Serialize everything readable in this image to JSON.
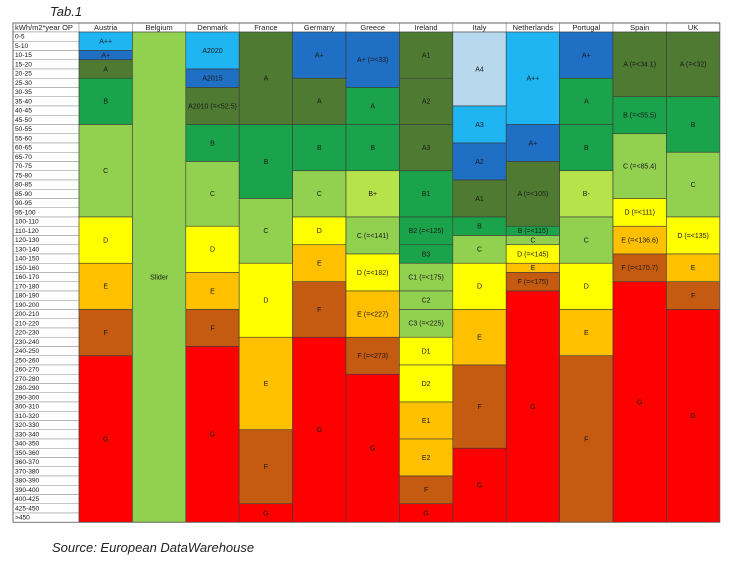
{
  "caption": "Tab.1",
  "source": "Source: European DataWarehouse",
  "chart_data": {
    "type": "table",
    "corner_header": "kWh/m2*year OP",
    "row_labels": [
      "0-5",
      "5-10",
      "10-15",
      "15-20",
      "20-25",
      "25-30",
      "30-35",
      "35-40",
      "40-45",
      "45-50",
      "50-55",
      "55-60",
      "60-65",
      "65-70",
      "70-75",
      "75-80",
      "80-85",
      "85-90",
      "90-95",
      "95-100",
      "100-110",
      "110-120",
      "120-130",
      "130-140",
      "140-150",
      "150-160",
      "160-170",
      "170-180",
      "180-190",
      "190-200",
      "200-210",
      "210-220",
      "220-230",
      "230-240",
      "240-250",
      "250-260",
      "260-270",
      "270-280",
      "280-290",
      "290-300",
      "300-310",
      "310-320",
      "320-330",
      "330-340",
      "340-350",
      "350-360",
      "360-370",
      "370-380",
      "380-390",
      "390-400",
      "400-425",
      "425-450",
      ">450"
    ],
    "countries": [
      {
        "name": "Austria",
        "segments": [
          {
            "label": "A++",
            "start": 0,
            "end": 2,
            "color": "#1fb5f2"
          },
          {
            "label": "A+",
            "start": 2,
            "end": 3,
            "color": "#1f6fc4"
          },
          {
            "label": "A",
            "start": 3,
            "end": 5,
            "color": "#4f7a32"
          },
          {
            "label": "B",
            "start": 5,
            "end": 10,
            "color": "#1aa34a"
          },
          {
            "label": "C",
            "start": 10,
            "end": 20,
            "color": "#92d050"
          },
          {
            "label": "D",
            "start": 20,
            "end": 25,
            "color": "#ffff00"
          },
          {
            "label": "E",
            "start": 25,
            "end": 30,
            "color": "#ffc000"
          },
          {
            "label": "F",
            "start": 30,
            "end": 35,
            "color": "#c55a11"
          },
          {
            "label": "G",
            "start": 35,
            "end": 53,
            "color": "#ff0000"
          }
        ]
      },
      {
        "name": "Belgium",
        "segments": [
          {
            "label": "Slider",
            "start": 0,
            "end": 53,
            "color": "#92d050"
          }
        ]
      },
      {
        "name": "Denmark",
        "segments": [
          {
            "label": "A2020",
            "start": 0,
            "end": 4,
            "color": "#1fb5f2"
          },
          {
            "label": "A2015",
            "start": 4,
            "end": 6,
            "color": "#1f6fc4"
          },
          {
            "label": "A2010 (=<52.5)",
            "start": 6,
            "end": 10,
            "color": "#4f7a32"
          },
          {
            "label": "B",
            "start": 10,
            "end": 14,
            "color": "#1aa34a"
          },
          {
            "label": "C",
            "start": 14,
            "end": 21,
            "color": "#92d050"
          },
          {
            "label": "D",
            "start": 21,
            "end": 26,
            "color": "#ffff00"
          },
          {
            "label": "E",
            "start": 26,
            "end": 30,
            "color": "#ffc000"
          },
          {
            "label": "F",
            "start": 30,
            "end": 34,
            "color": "#c55a11"
          },
          {
            "label": "G",
            "start": 34,
            "end": 53,
            "color": "#ff0000"
          }
        ]
      },
      {
        "name": "France",
        "segments": [
          {
            "label": "A",
            "start": 0,
            "end": 10,
            "color": "#4f7a32"
          },
          {
            "label": "B",
            "start": 10,
            "end": 18,
            "color": "#1aa34a"
          },
          {
            "label": "C",
            "start": 18,
            "end": 25,
            "color": "#92d050"
          },
          {
            "label": "D",
            "start": 25,
            "end": 33,
            "color": "#ffff00"
          },
          {
            "label": "E",
            "start": 33,
            "end": 43,
            "color": "#ffc000"
          },
          {
            "label": "F",
            "start": 43,
            "end": 51,
            "color": "#c55a11"
          },
          {
            "label": "G",
            "start": 51,
            "end": 53,
            "color": "#ff0000"
          }
        ]
      },
      {
        "name": "Germany",
        "segments": [
          {
            "label": "A+",
            "start": 0,
            "end": 5,
            "color": "#1f6fc4"
          },
          {
            "label": "A",
            "start": 5,
            "end": 10,
            "color": "#4f7a32"
          },
          {
            "label": "B",
            "start": 10,
            "end": 15,
            "color": "#1aa34a"
          },
          {
            "label": "C",
            "start": 15,
            "end": 20,
            "color": "#92d050"
          },
          {
            "label": "D",
            "start": 20,
            "end": 23,
            "color": "#ffff00"
          },
          {
            "label": "E",
            "start": 23,
            "end": 27,
            "color": "#ffc000"
          },
          {
            "label": "F",
            "start": 27,
            "end": 33,
            "color": "#c55a11"
          },
          {
            "label": "G",
            "start": 33,
            "end": 53,
            "color": "#ff0000"
          }
        ]
      },
      {
        "name": "Greece",
        "segments": [
          {
            "label": "A+ (=<33)",
            "start": 0,
            "end": 6,
            "color": "#1f6fc4"
          },
          {
            "label": "A",
            "start": 6,
            "end": 10,
            "color": "#1aa34a"
          },
          {
            "label": "B",
            "start": 10,
            "end": 15,
            "color": "#1aa34a"
          },
          {
            "label": "B+",
            "start": 15,
            "end": 20,
            "color": "#b7e34a"
          },
          {
            "label": "C (=<141)",
            "start": 20,
            "end": 24,
            "color": "#92d050"
          },
          {
            "label": "D (=<182)",
            "start": 24,
            "end": 28,
            "color": "#ffff00"
          },
          {
            "label": "E (=<227)",
            "start": 28,
            "end": 33,
            "color": "#ffc000"
          },
          {
            "label": "F (=<273)",
            "start": 33,
            "end": 37,
            "color": "#c55a11"
          },
          {
            "label": "G",
            "start": 37,
            "end": 53,
            "color": "#ff0000"
          }
        ]
      },
      {
        "name": "Ireland",
        "segments": [
          {
            "label": "A1",
            "start": 0,
            "end": 5,
            "color": "#4f7a32"
          },
          {
            "label": "A2",
            "start": 5,
            "end": 10,
            "color": "#4f7a32"
          },
          {
            "label": "A3",
            "start": 10,
            "end": 15,
            "color": "#4f7a32"
          },
          {
            "label": "B1",
            "start": 15,
            "end": 20,
            "color": "#1aa34a"
          },
          {
            "label": "B2 (=<125)",
            "start": 20,
            "end": 23,
            "color": "#1aa34a"
          },
          {
            "label": "B3",
            "start": 23,
            "end": 25,
            "color": "#1aa34a"
          },
          {
            "label": "C1 (=<175)",
            "start": 25,
            "end": 28,
            "color": "#92d050"
          },
          {
            "label": "C2",
            "start": 28,
            "end": 30,
            "color": "#92d050"
          },
          {
            "label": "C3 (=<225)",
            "start": 30,
            "end": 33,
            "color": "#92d050"
          },
          {
            "label": "D1",
            "start": 33,
            "end": 36,
            "color": "#ffff00"
          },
          {
            "label": "D2",
            "start": 36,
            "end": 40,
            "color": "#ffff00"
          },
          {
            "label": "E1",
            "start": 40,
            "end": 44,
            "color": "#ffc000"
          },
          {
            "label": "E2",
            "start": 44,
            "end": 48,
            "color": "#ffc000"
          },
          {
            "label": "F",
            "start": 48,
            "end": 51,
            "color": "#c55a11"
          },
          {
            "label": "G",
            "start": 51,
            "end": 53,
            "color": "#ff0000"
          }
        ]
      },
      {
        "name": "Italy",
        "segments": [
          {
            "label": "A4",
            "start": 0,
            "end": 8,
            "color": "#b8d8ee"
          },
          {
            "label": "A3",
            "start": 8,
            "end": 12,
            "color": "#1fb5f2"
          },
          {
            "label": "A2",
            "start": 12,
            "end": 16,
            "color": "#1f6fc4"
          },
          {
            "label": "A1",
            "start": 16,
            "end": 20,
            "color": "#4f7a32"
          },
          {
            "label": "B",
            "start": 20,
            "end": 22,
            "color": "#1aa34a"
          },
          {
            "label": "C",
            "start": 22,
            "end": 25,
            "color": "#92d050"
          },
          {
            "label": "D",
            "start": 25,
            "end": 30,
            "color": "#ffff00"
          },
          {
            "label": "E",
            "start": 30,
            "end": 36,
            "color": "#ffc000"
          },
          {
            "label": "F",
            "start": 36,
            "end": 45,
            "color": "#c55a11"
          },
          {
            "label": "G",
            "start": 45,
            "end": 53,
            "color": "#ff0000"
          }
        ]
      },
      {
        "name": "Netherlands",
        "segments": [
          {
            "label": "A++",
            "start": 0,
            "end": 10,
            "color": "#1fb5f2"
          },
          {
            "label": "A+",
            "start": 10,
            "end": 14,
            "color": "#1f6fc4"
          },
          {
            "label": "A (=<105)",
            "start": 14,
            "end": 21,
            "color": "#4f7a32"
          },
          {
            "label": "B (=<115)",
            "start": 21,
            "end": 22,
            "color": "#1aa34a"
          },
          {
            "label": "C",
            "start": 22,
            "end": 23,
            "color": "#92d050"
          },
          {
            "label": "D (=<145)",
            "start": 23,
            "end": 25,
            "color": "#ffff00"
          },
          {
            "label": "E",
            "start": 25,
            "end": 26,
            "color": "#ffc000"
          },
          {
            "label": "F (=<175)",
            "start": 26,
            "end": 28,
            "color": "#c55a11"
          },
          {
            "label": "G",
            "start": 28,
            "end": 53,
            "color": "#ff0000"
          }
        ]
      },
      {
        "name": "Portugal",
        "segments": [
          {
            "label": "A+",
            "start": 0,
            "end": 5,
            "color": "#1f6fc4"
          },
          {
            "label": "A",
            "start": 5,
            "end": 10,
            "color": "#1aa34a"
          },
          {
            "label": "B",
            "start": 10,
            "end": 15,
            "color": "#1aa34a"
          },
          {
            "label": "B-",
            "start": 15,
            "end": 20,
            "color": "#b7e34a"
          },
          {
            "label": "C",
            "start": 20,
            "end": 25,
            "color": "#92d050"
          },
          {
            "label": "D",
            "start": 25,
            "end": 30,
            "color": "#ffff00"
          },
          {
            "label": "E",
            "start": 30,
            "end": 35,
            "color": "#ffc000"
          },
          {
            "label": "F",
            "start": 35,
            "end": 53,
            "color": "#c55a11"
          }
        ]
      },
      {
        "name": "Spain",
        "segments": [
          {
            "label": "A (=<34.1)",
            "start": 0,
            "end": 7,
            "color": "#4f7a32"
          },
          {
            "label": "B (=<55.5)",
            "start": 7,
            "end": 11,
            "color": "#1aa34a"
          },
          {
            "label": "C (=<85.4)",
            "start": 11,
            "end": 18,
            "color": "#92d050"
          },
          {
            "label": "D (=<111)",
            "start": 18,
            "end": 21,
            "color": "#ffff00"
          },
          {
            "label": "E (=<136.6)",
            "start": 21,
            "end": 24,
            "color": "#ffc000"
          },
          {
            "label": "F (=<170.7)",
            "start": 24,
            "end": 27,
            "color": "#c55a11"
          },
          {
            "label": "G",
            "start": 27,
            "end": 53,
            "color": "#ff0000"
          }
        ]
      },
      {
        "name": "UK",
        "segments": [
          {
            "label": "A (=<32)",
            "start": 0,
            "end": 7,
            "color": "#4f7a32"
          },
          {
            "label": "B",
            "start": 7,
            "end": 13,
            "color": "#1aa34a"
          },
          {
            "label": "C",
            "start": 13,
            "end": 20,
            "color": "#92d050"
          },
          {
            "label": "D (=<135)",
            "start": 20,
            "end": 24,
            "color": "#ffff00"
          },
          {
            "label": "E",
            "start": 24,
            "end": 27,
            "color": "#ffc000"
          },
          {
            "label": "F",
            "start": 27,
            "end": 30,
            "color": "#c55a11"
          },
          {
            "label": "G",
            "start": 30,
            "end": 53,
            "color": "#ff0000"
          }
        ]
      }
    ]
  }
}
